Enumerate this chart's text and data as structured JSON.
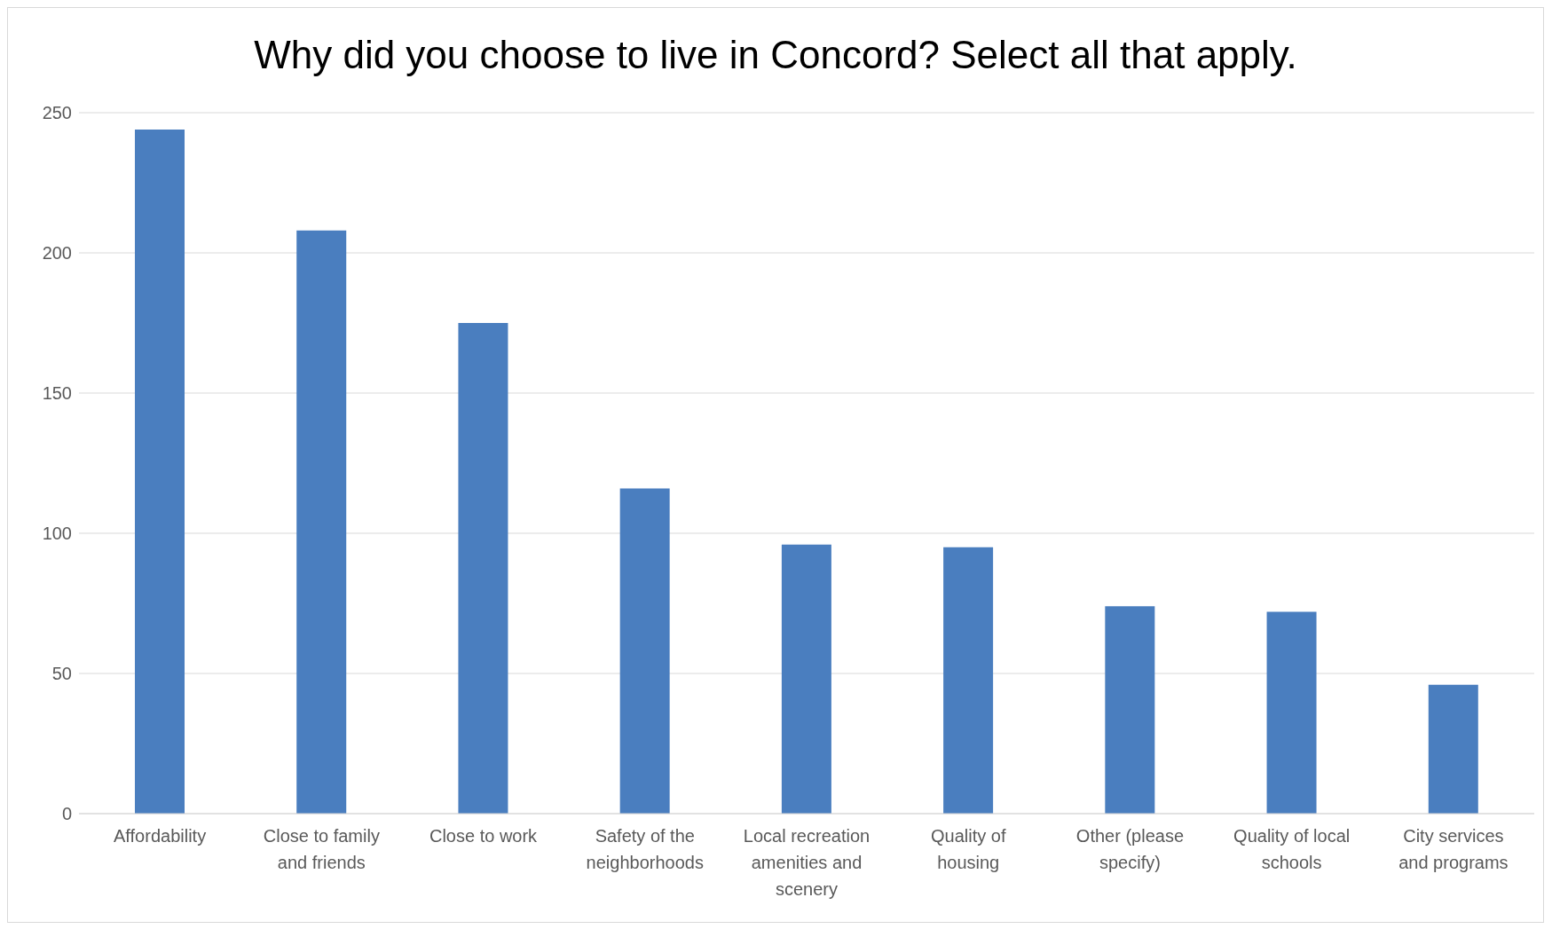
{
  "chart_data": {
    "type": "bar",
    "title": "Why did you choose to live in Concord? Select all that apply.",
    "categories": [
      "Affordability",
      "Close to family and friends",
      "Close to work",
      "Safety of the neighborhoods",
      "Local recreation amenities and scenery",
      "Quality of housing",
      "Other (please specify)",
      "Quality of local schools",
      "City services and programs"
    ],
    "values": [
      244,
      208,
      175,
      116,
      96,
      95,
      74,
      72,
      46
    ],
    "color": "#4a7ebf",
    "ylim": [
      0,
      250
    ],
    "yticks": [
      0,
      50,
      100,
      150,
      200,
      250
    ],
    "grid": "y",
    "legend": false
  }
}
